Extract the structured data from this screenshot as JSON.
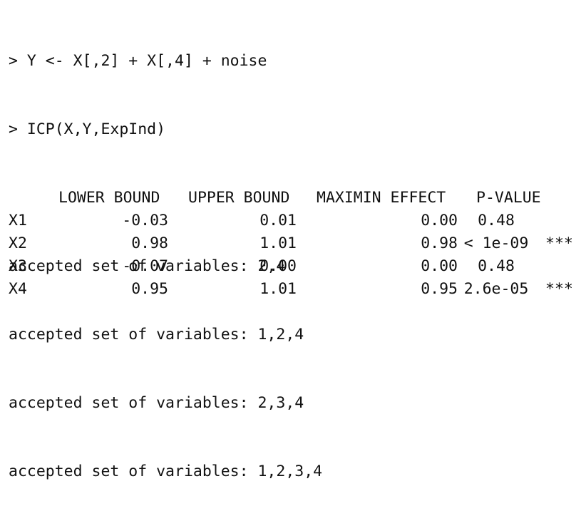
{
  "console": {
    "commands": [
      "> Y <- X[,2] + X[,4] + noise",
      "> ICP(X,Y,ExpInd)"
    ],
    "accepted_sets": [
      "accepted set of variables: 2,4",
      "accepted set of variables: 1,2,4",
      "accepted set of variables: 2,3,4",
      "accepted set of variables: 1,2,3,4"
    ]
  },
  "table": {
    "headers": {
      "lower": "LOWER BOUND",
      "upper": "UPPER BOUND",
      "maximin": "MAXIMIN EFFECT",
      "pvalue": "P-VALUE"
    },
    "rows": [
      {
        "name": "X1",
        "lower": "-0.03",
        "upper": "0.01",
        "maximin": "0.00",
        "pvalue": "0.48",
        "sig": ""
      },
      {
        "name": "X2",
        "lower": "0.98",
        "upper": "1.01",
        "maximin": "0.98",
        "pvalue": "< 1e-09",
        "sig": "***"
      },
      {
        "name": "X3",
        "lower": "-0.07",
        "upper": "0.00",
        "maximin": "0.00",
        "pvalue": "0.48",
        "sig": ""
      },
      {
        "name": "X4",
        "lower": "0.95",
        "upper": "1.01",
        "maximin": "0.95",
        "pvalue": "2.6e-05",
        "sig": "***"
      }
    ]
  }
}
